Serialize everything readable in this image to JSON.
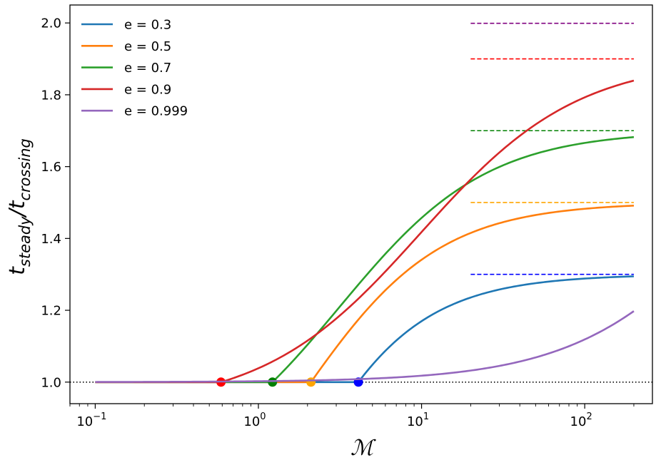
{
  "chart_data": {
    "type": "line",
    "xscale": "log",
    "xlim": [
      0.07,
      260
    ],
    "ylim": [
      0.94,
      2.05
    ],
    "xlabel": "ℳ",
    "ylabel": {
      "main": "t",
      "sub1": "steady",
      "sep": "/t",
      "sub2": "crossing"
    },
    "x_ticks": [
      {
        "value": 0.1,
        "base": "10",
        "exp": "−1"
      },
      {
        "value": 1,
        "base": "10",
        "exp": "0"
      },
      {
        "value": 10,
        "base": "10",
        "exp": "1"
      },
      {
        "value": 100,
        "base": "10",
        "exp": "2"
      }
    ],
    "y_ticks": [
      "1.0",
      "1.2",
      "1.4",
      "1.6",
      "1.8",
      "2.0"
    ],
    "reference_line": {
      "y": 1.0,
      "style": "dotted",
      "color": "#000000"
    },
    "series": [
      {
        "name": "e = 0.3",
        "e": 0.3,
        "color": "#1f77b4",
        "asymptote": 1.3,
        "asymptote_color": "#0000ff",
        "marker_x": 4.1,
        "marker_color": "#0000ff",
        "x_range": [
          0.1,
          200
        ]
      },
      {
        "name": "e = 0.5",
        "e": 0.5,
        "color": "#ff7f0e",
        "asymptote": 1.5,
        "asymptote_color": "#ffa500",
        "marker_x": 2.1,
        "marker_color": "#ffa500",
        "x_range": [
          0.1,
          200
        ]
      },
      {
        "name": "e = 0.7",
        "e": 0.7,
        "color": "#2ca02c",
        "asymptote": 1.7,
        "asymptote_color": "#008000",
        "marker_x": 1.22,
        "marker_color": "#008000",
        "x_range": [
          0.1,
          200
        ]
      },
      {
        "name": "e = 0.9",
        "e": 0.9,
        "color": "#d62728",
        "asymptote": 1.9,
        "asymptote_color": "#ff0000",
        "marker_x": 0.59,
        "marker_color": "#ff0000",
        "x_range": [
          0.1,
          200
        ]
      },
      {
        "name": "e = 0.999",
        "e": 0.999,
        "color": "#9467bd",
        "asymptote": 1.999,
        "asymptote_color": "#800080",
        "marker_x": 0.1,
        "marker_color": null,
        "x_range": [
          0.1,
          200
        ]
      }
    ],
    "asymptote_x_range": [
      20,
      200
    ],
    "legend_position": "top-left"
  }
}
